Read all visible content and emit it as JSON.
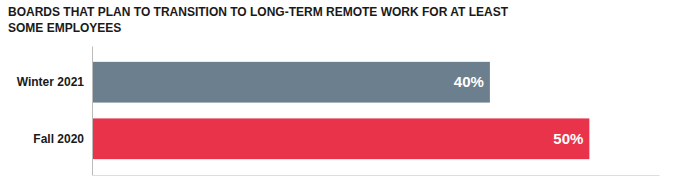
{
  "chart_data": {
    "type": "bar",
    "orientation": "horizontal",
    "title": "BOARDS THAT PLAN TO TRANSITION TO LONG-TERM REMOTE WORK FOR AT LEAST",
    "subtitle": "SOME EMPLOYEES",
    "categories": [
      "Winter 2021",
      "Fall 2020"
    ],
    "values": [
      40,
      50
    ],
    "colors": [
      "#6b7f8e",
      "#e8334a"
    ],
    "value_labels": [
      "40%",
      "50%"
    ],
    "data_labels": true,
    "xlim": [
      0,
      57
    ],
    "tick_labels": "y",
    "grid": false
  }
}
